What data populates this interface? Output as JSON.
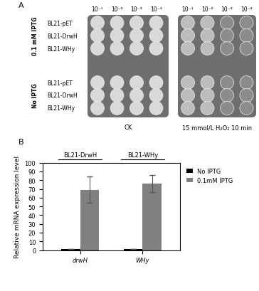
{
  "panel_a": {
    "label": "A",
    "dilutions": [
      "10⁻¹",
      "10⁻²",
      "10⁻³",
      "10⁻⁴"
    ],
    "groups": [
      {
        "condition": "0.1 mM IPTG",
        "strains": [
          "BL21-pET",
          "BL21-DrwH",
          "BL21-WHy"
        ]
      },
      {
        "condition": "No IPTG",
        "strains": [
          "BL21-pET",
          "BL21-DrwH",
          "BL21-WHy"
        ]
      }
    ],
    "treatments": [
      "CK",
      "15 mmol/L H₂O₂ 10 min"
    ]
  },
  "chart_data": {
    "label": "B",
    "type": "bar",
    "categories": [
      "drwH",
      "WHy"
    ],
    "group_titles": [
      "BL21-DrwH",
      "BL21-WHy"
    ],
    "ylabel": "Relative mRNA expression level",
    "series": [
      {
        "name": "No IPTG",
        "color": "#000000",
        "values": [
          1,
          1
        ],
        "errors": [
          0.1,
          0.1
        ]
      },
      {
        "name": "0.1mM IPTG",
        "color": "#808080",
        "values": [
          69,
          76
        ],
        "errors": [
          15,
          10
        ]
      }
    ],
    "ylim": [
      0,
      100
    ],
    "yticks": [
      0,
      10,
      20,
      30,
      40,
      50,
      60,
      70,
      80,
      90,
      100
    ],
    "legend": "upper right"
  }
}
